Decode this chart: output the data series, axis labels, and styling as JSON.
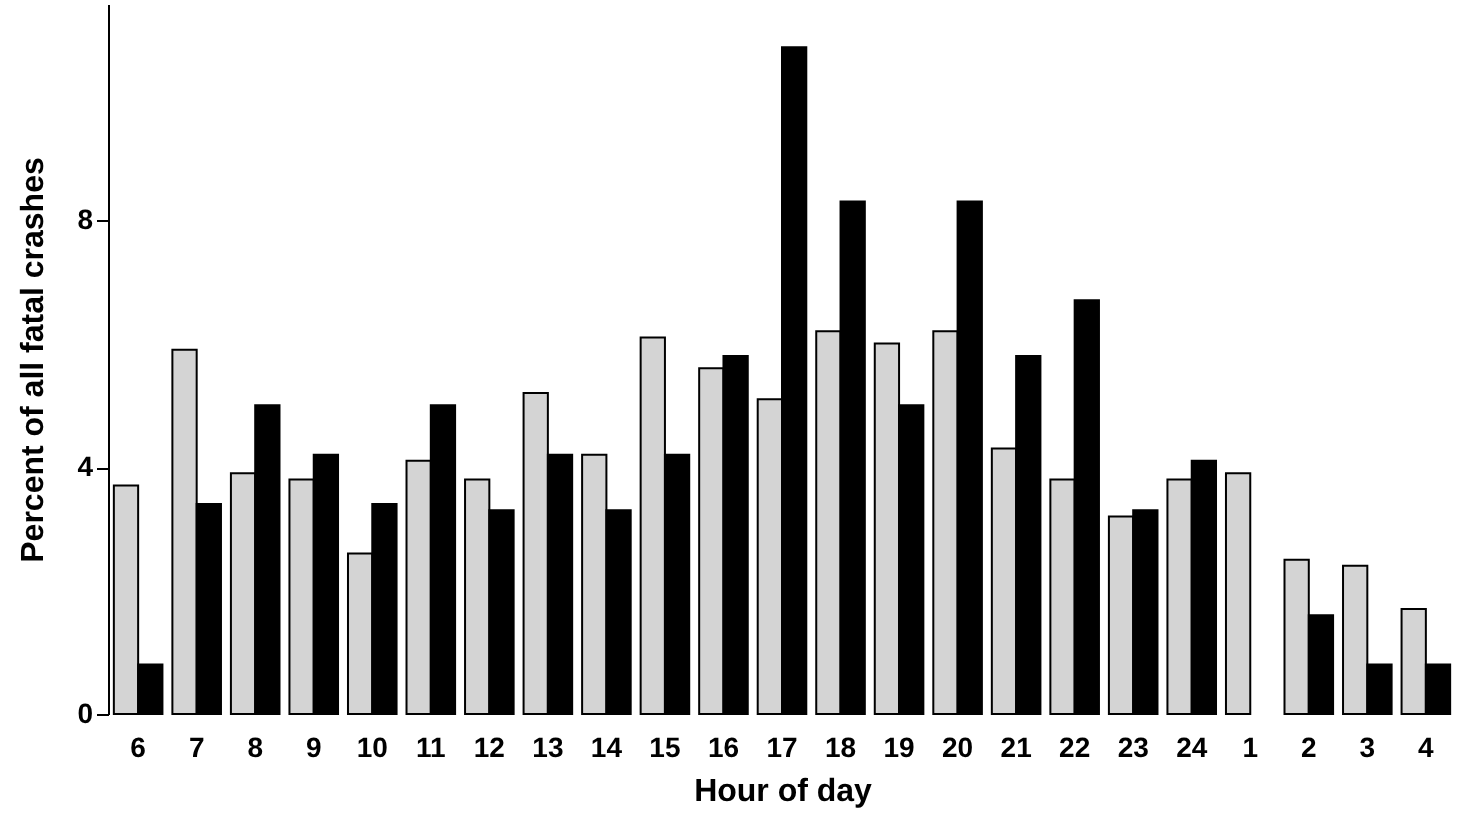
{
  "chart_data": {
    "type": "bar",
    "ylabel": "Percent of all fatal crashes",
    "xlabel": "Hour of day",
    "categories": [
      "6",
      "7",
      "8",
      "9",
      "10",
      "11",
      "12",
      "13",
      "14",
      "15",
      "16",
      "17",
      "18",
      "19",
      "20",
      "21",
      "22",
      "23",
      "24",
      "1",
      "2",
      "3",
      "4"
    ],
    "series": [
      {
        "color": "#d4d4d4",
        "values": [
          3.7,
          5.9,
          3.9,
          3.8,
          2.6,
          4.1,
          3.8,
          5.2,
          4.2,
          6.1,
          5.6,
          5.1,
          6.2,
          6.0,
          6.2,
          4.3,
          3.8,
          3.2,
          3.8,
          3.9,
          2.5,
          2.4,
          1.7
        ]
      },
      {
        "color": "#000000",
        "values": [
          0.8,
          3.4,
          5.0,
          4.2,
          3.4,
          5.0,
          3.3,
          4.2,
          3.3,
          4.2,
          5.8,
          10.8,
          8.3,
          5.0,
          8.3,
          5.8,
          6.7,
          3.3,
          4.1,
          null,
          1.6,
          0.8,
          0.8
        ]
      }
    ],
    "ylim": [
      0,
      11.5
    ],
    "yticks": [
      0,
      4,
      8
    ],
    "grid": false,
    "legend": false
  }
}
